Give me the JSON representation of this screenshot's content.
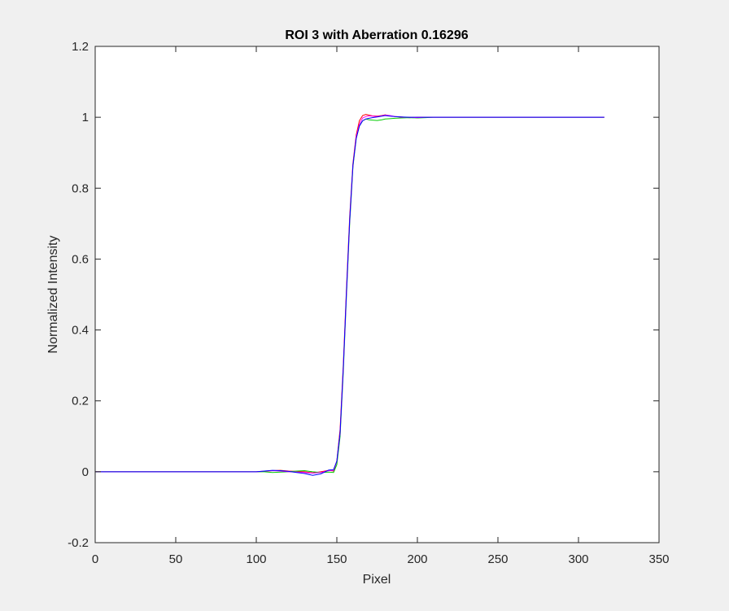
{
  "chart_data": {
    "type": "line",
    "title": "ROI 3 with Aberration 0.16296",
    "xlabel": "Pixel",
    "ylabel": "Normalized Intensity",
    "xlim": [
      0,
      350
    ],
    "ylim": [
      -0.2,
      1.2
    ],
    "xticks": [
      "0",
      "50",
      "100",
      "150",
      "200",
      "250",
      "300",
      "350"
    ],
    "yticks": [
      "-0.2",
      "0",
      "0.2",
      "0.4",
      "0.6",
      "0.8",
      "1",
      "1.2"
    ],
    "grid": false,
    "legend": "none",
    "series": [
      {
        "color": "#ff0000",
        "x": [
          0,
          100,
          105,
          110,
          115,
          120,
          125,
          130,
          135,
          140,
          145,
          148,
          150,
          152,
          154,
          156,
          158,
          160,
          162,
          164,
          166,
          168,
          170,
          172,
          175,
          178,
          180,
          183,
          186,
          190,
          195,
          200,
          205,
          210,
          215,
          250,
          300,
          316
        ],
        "y": [
          0,
          0,
          0.001,
          0.003,
          0.004,
          0.002,
          0.001,
          0.0,
          -0.003,
          0.0,
          0.004,
          0.002,
          0.03,
          0.12,
          0.3,
          0.52,
          0.72,
          0.87,
          0.95,
          0.99,
          1.005,
          1.008,
          1.006,
          1.004,
          1.003,
          1.005,
          1.007,
          1.004,
          1.002,
          1.001,
          0.999,
          1.0,
          1.0,
          1.0,
          1.0,
          1.0,
          1.0,
          1.0
        ]
      },
      {
        "color": "#00cc00",
        "x": [
          0,
          100,
          105,
          110,
          115,
          120,
          125,
          130,
          135,
          140,
          145,
          148,
          150,
          152,
          154,
          156,
          158,
          160,
          162,
          164,
          166,
          168,
          170,
          172,
          175,
          178,
          180,
          183,
          186,
          190,
          195,
          200,
          205,
          210,
          215,
          250,
          300,
          316
        ],
        "y": [
          0,
          0,
          0.0,
          -0.002,
          -0.001,
          0.0,
          0.002,
          0.003,
          0.0,
          -0.002,
          -0.001,
          -0.002,
          0.02,
          0.1,
          0.28,
          0.5,
          0.7,
          0.86,
          0.94,
          0.975,
          0.99,
          0.995,
          0.993,
          0.992,
          0.991,
          0.993,
          0.995,
          0.996,
          0.997,
          0.998,
          0.999,
          0.998,
          0.999,
          1.0,
          1.0,
          1.0,
          1.0,
          1.0
        ]
      },
      {
        "color": "#ff00ff",
        "x": [
          0,
          100,
          105,
          110,
          115,
          120,
          125,
          130,
          135,
          140,
          145,
          148,
          150,
          152,
          154,
          156,
          158,
          160,
          162,
          164,
          166,
          168,
          170,
          172,
          175,
          178,
          180,
          183,
          186,
          190,
          195,
          200,
          205,
          210,
          215,
          250,
          300,
          316
        ],
        "y": [
          0,
          0,
          0.002,
          0.003,
          0.002,
          0.0,
          -0.001,
          -0.002,
          -0.004,
          -0.002,
          0.003,
          0.004,
          0.03,
          0.11,
          0.29,
          0.51,
          0.71,
          0.865,
          0.945,
          0.98,
          0.998,
          1.002,
          1.004,
          1.003,
          1.002,
          1.004,
          1.006,
          1.005,
          1.002,
          1.0,
          1.0,
          0.999,
          1.0,
          1.0,
          1.0,
          1.0,
          1.0,
          1.0
        ]
      },
      {
        "color": "#0000ff",
        "x": [
          0,
          100,
          105,
          110,
          115,
          120,
          125,
          130,
          135,
          140,
          145,
          148,
          150,
          152,
          154,
          156,
          158,
          160,
          162,
          164,
          166,
          168,
          170,
          172,
          175,
          178,
          180,
          183,
          186,
          190,
          195,
          200,
          205,
          210,
          215,
          250,
          300,
          316
        ],
        "y": [
          0,
          0,
          0.002,
          0.004,
          0.003,
          0.001,
          -0.002,
          -0.005,
          -0.01,
          -0.006,
          0.005,
          0.006,
          0.03,
          0.11,
          0.29,
          0.51,
          0.71,
          0.865,
          0.94,
          0.975,
          0.99,
          0.995,
          0.997,
          0.999,
          1.001,
          1.003,
          1.005,
          1.003,
          1.002,
          1.001,
          1.0,
          1.0,
          1.0,
          1.0,
          1.0,
          1.0,
          1.0,
          1.0
        ]
      }
    ]
  }
}
